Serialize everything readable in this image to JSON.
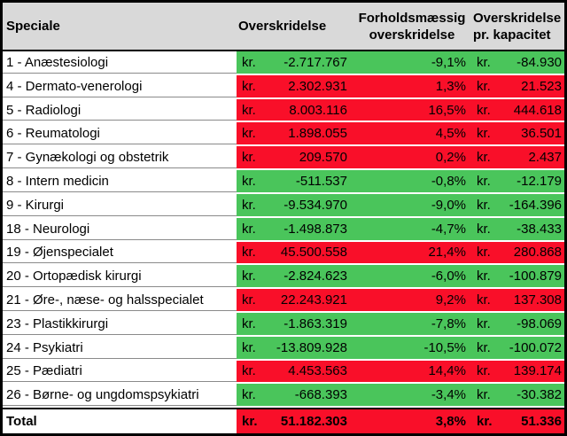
{
  "table": {
    "currency": "kr.",
    "headers": {
      "speciale": "Speciale",
      "overskridelse": "Overskridelse",
      "forholdsmaessig_line1": "Forholdsmæssig",
      "forholdsmaessig_line2": "overskridelse",
      "pr_kapacitet_line1": "Overskridelse",
      "pr_kapacitet_line2": "pr. kapacitet"
    },
    "rows": [
      {
        "label": "1 - Anæstesiologi",
        "overskridelse": "-2.717.767",
        "forholdsmaessig": "-9,1%",
        "pr_kapacitet": "-84.930",
        "color": "green"
      },
      {
        "label": "4 - Dermato-venerologi",
        "overskridelse": "2.302.931",
        "forholdsmaessig": "1,3%",
        "pr_kapacitet": "21.523",
        "color": "red"
      },
      {
        "label": "5 - Radiologi",
        "overskridelse": "8.003.116",
        "forholdsmaessig": "16,5%",
        "pr_kapacitet": "444.618",
        "color": "red"
      },
      {
        "label": "6 - Reumatologi",
        "overskridelse": "1.898.055",
        "forholdsmaessig": "4,5%",
        "pr_kapacitet": "36.501",
        "color": "red"
      },
      {
        "label": "7 - Gynækologi og obstetrik",
        "overskridelse": "209.570",
        "forholdsmaessig": "0,2%",
        "pr_kapacitet": "2.437",
        "color": "red"
      },
      {
        "label": "8 - Intern medicin",
        "overskridelse": "-511.537",
        "forholdsmaessig": "-0,8%",
        "pr_kapacitet": "-12.179",
        "color": "green"
      },
      {
        "label": "9 - Kirurgi",
        "overskridelse": "-9.534.970",
        "forholdsmaessig": "-9,0%",
        "pr_kapacitet": "-164.396",
        "color": "green"
      },
      {
        "label": "18 - Neurologi",
        "overskridelse": "-1.498.873",
        "forholdsmaessig": "-4,7%",
        "pr_kapacitet": "-38.433",
        "color": "green"
      },
      {
        "label": "19 - Øjenspecialet",
        "overskridelse": "45.500.558",
        "forholdsmaessig": "21,4%",
        "pr_kapacitet": "280.868",
        "color": "red"
      },
      {
        "label": "20 - Ortopædisk kirurgi",
        "overskridelse": "-2.824.623",
        "forholdsmaessig": "-6,0%",
        "pr_kapacitet": "-100.879",
        "color": "green"
      },
      {
        "label": "21 - Øre-, næse- og halsspecialet",
        "overskridelse": "22.243.921",
        "forholdsmaessig": "9,2%",
        "pr_kapacitet": "137.308",
        "color": "red"
      },
      {
        "label": "23 - Plastikkirurgi",
        "overskridelse": "-1.863.319",
        "forholdsmaessig": "-7,8%",
        "pr_kapacitet": "-98.069",
        "color": "green"
      },
      {
        "label": "24 - Psykiatri",
        "overskridelse": "-13.809.928",
        "forholdsmaessig": "-10,5%",
        "pr_kapacitet": "-100.072",
        "color": "green"
      },
      {
        "label": "25 - Pædiatri",
        "overskridelse": "4.453.563",
        "forholdsmaessig": "14,4%",
        "pr_kapacitet": "139.174",
        "color": "red"
      },
      {
        "label": "26 - Børne- og ungdomspsykiatri",
        "overskridelse": "-668.393",
        "forholdsmaessig": "-3,4%",
        "pr_kapacitet": "-30.382",
        "color": "green"
      }
    ],
    "total": {
      "label": "Total",
      "overskridelse": "51.182.303",
      "forholdsmaessig": "3,8%",
      "pr_kapacitet": "51.336",
      "color": "red"
    }
  },
  "colors": {
    "green_bg": "#4ac55b",
    "red_bg": "#f90f29",
    "header_bg": "#d9d9d9"
  }
}
